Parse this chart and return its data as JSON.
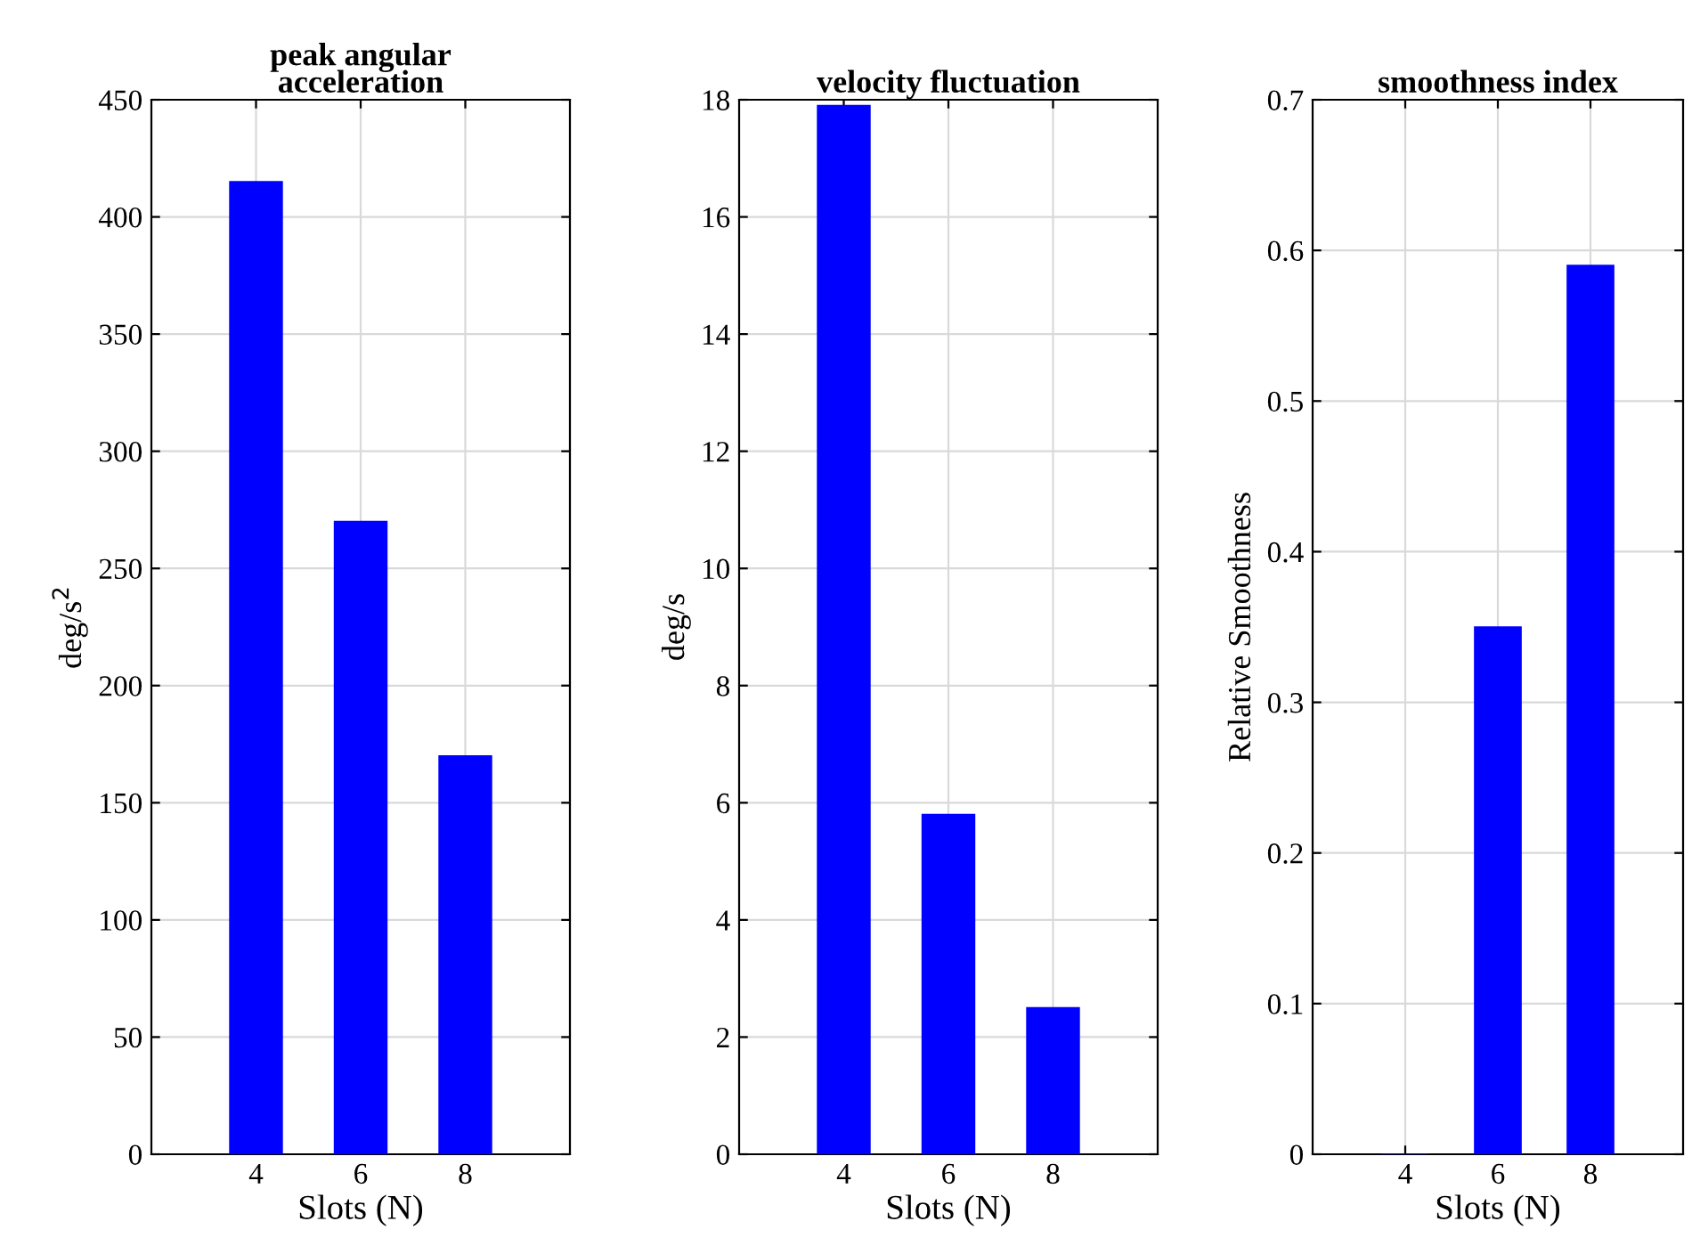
{
  "chart_data": [
    {
      "type": "bar",
      "title": "peak angular\nacceleration",
      "xlabel": "Slots (N)",
      "ylabel": "deg/s$^{2}$",
      "x": [
        4,
        6,
        8
      ],
      "values": [
        415,
        270,
        170
      ],
      "color": "#0000ff",
      "xlim": [
        2,
        10
      ],
      "xticks": [
        4,
        6,
        8
      ],
      "ylim": [
        0,
        450
      ],
      "yticks": [
        0,
        50,
        100,
        150,
        200,
        250,
        300,
        350,
        400,
        450
      ],
      "grid": true
    },
    {
      "type": "bar",
      "title": "velocity fluctuation",
      "xlabel": "Slots (N)",
      "ylabel": "deg/s",
      "x": [
        4,
        6,
        8
      ],
      "values": [
        17.9,
        5.8,
        2.5
      ],
      "color": "#0000ff",
      "xlim": [
        2,
        10
      ],
      "xticks": [
        4,
        6,
        8
      ],
      "ylim": [
        0,
        18
      ],
      "yticks": [
        0,
        2,
        4,
        6,
        8,
        10,
        12,
        14,
        16,
        18
      ],
      "grid": true
    },
    {
      "type": "bar",
      "title": "smoothness index",
      "xlabel": "Slots (N)",
      "ylabel": "Relative Smoothness",
      "x": [
        4,
        6,
        8
      ],
      "values": [
        0,
        0.35,
        0.59
      ],
      "color": "#0000ff",
      "xlim": [
        2,
        10
      ],
      "xticks": [
        4,
        6,
        8
      ],
      "ylim": [
        0,
        0.7
      ],
      "yticks": [
        0,
        0.1,
        0.2,
        0.3,
        0.4,
        0.5,
        0.6,
        0.7
      ],
      "grid": true
    }
  ]
}
